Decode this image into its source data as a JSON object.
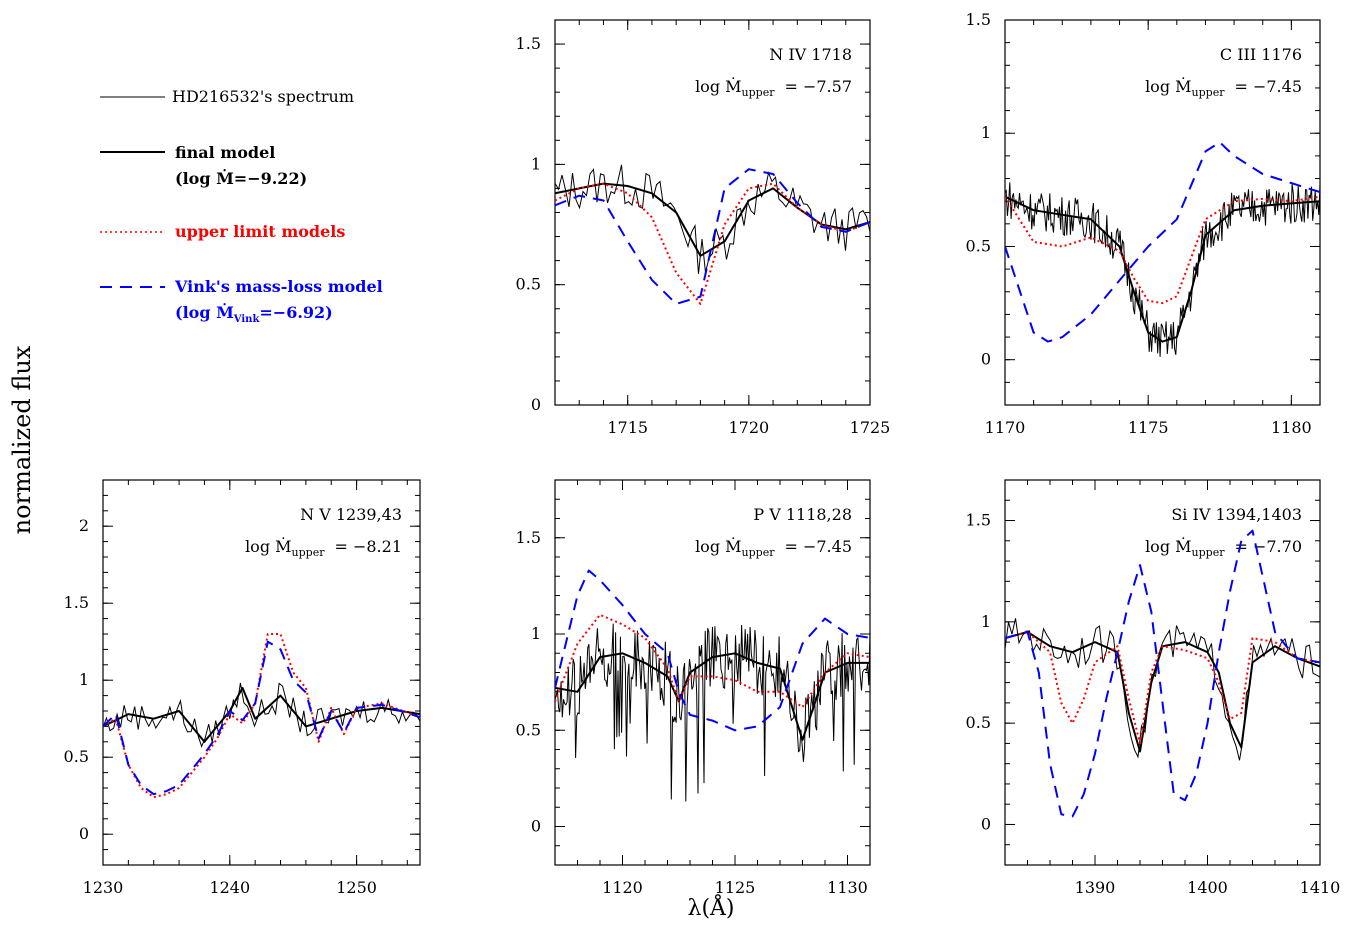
{
  "figure": {
    "ylabel": "normalized flux",
    "xlabel": "λ(Å)"
  },
  "legend": {
    "spectrum_label": "HD216532's spectrum",
    "final_label": "final model",
    "final_sub": "(log Ṁ=−9.22)",
    "upper_label": "upper limit models",
    "vink_label": "Vink's mass-loss model",
    "vink_sub_pre": "(log Ṁ",
    "vink_sub_subscript": "Vink",
    "vink_sub_post": "=−6.92)"
  },
  "colors": {
    "spectrum": "#000000",
    "final": "#000000",
    "upper": "#ff0000",
    "vink": "#0000ff"
  },
  "chart_data": [
    {
      "type": "line",
      "title": "N IV 1718",
      "annotation_prefix": "log Ṁ",
      "annotation_subscript": "upper",
      "annotation_value": "=  −7.57",
      "xlim": [
        1712,
        1725
      ],
      "ylim": [
        0,
        1.6
      ],
      "xticks": [
        1715,
        1720,
        1725
      ],
      "xtick_labels": [
        "1715",
        "1720",
        "1725"
      ],
      "yticks": [
        0,
        0.5,
        1,
        1.5
      ],
      "ytick_labels": [
        "0",
        "0.5",
        "1",
        "1.5"
      ],
      "series": [
        {
          "name": "final model",
          "x": [
            1712,
            1713,
            1714,
            1715,
            1716,
            1717,
            1718,
            1719,
            1720,
            1721,
            1722,
            1723,
            1724,
            1725
          ],
          "y": [
            0.88,
            0.9,
            0.92,
            0.91,
            0.88,
            0.8,
            0.62,
            0.68,
            0.85,
            0.9,
            0.82,
            0.75,
            0.73,
            0.76
          ]
        },
        {
          "name": "upper limit models",
          "x": [
            1712,
            1713,
            1714,
            1715,
            1716,
            1717,
            1718,
            1719,
            1720,
            1721,
            1722,
            1723,
            1724,
            1725
          ],
          "y": [
            0.85,
            0.9,
            0.92,
            0.88,
            0.78,
            0.55,
            0.42,
            0.75,
            0.9,
            0.92,
            0.82,
            0.75,
            0.72,
            0.76
          ]
        },
        {
          "name": "Vink's mass-loss model",
          "x": [
            1712,
            1713,
            1714,
            1715,
            1716,
            1717,
            1718,
            1719,
            1720,
            1721,
            1722,
            1723,
            1724,
            1725
          ],
          "y": [
            0.83,
            0.87,
            0.85,
            0.68,
            0.52,
            0.42,
            0.45,
            0.9,
            0.98,
            0.96,
            0.84,
            0.74,
            0.72,
            0.76
          ]
        }
      ]
    },
    {
      "type": "line",
      "title": "C III 1176",
      "annotation_prefix": "log Ṁ",
      "annotation_subscript": "upper",
      "annotation_value": "=  −7.45",
      "xlim": [
        1170,
        1181
      ],
      "ylim": [
        -0.2,
        1.5
      ],
      "xticks": [
        1170,
        1175,
        1180
      ],
      "xtick_labels": [
        "1170",
        "1175",
        "1180"
      ],
      "yticks": [
        0,
        0.5,
        1,
        1.5
      ],
      "ytick_labels": [
        "0",
        "0.5",
        "1",
        "1.5"
      ],
      "series": [
        {
          "name": "final model",
          "x": [
            1170,
            1171,
            1172,
            1173,
            1174,
            1174.5,
            1175,
            1175.5,
            1176,
            1176.5,
            1177,
            1178,
            1179,
            1180,
            1181
          ],
          "y": [
            0.72,
            0.66,
            0.64,
            0.62,
            0.5,
            0.3,
            0.12,
            0.08,
            0.1,
            0.3,
            0.55,
            0.66,
            0.68,
            0.69,
            0.7
          ]
        },
        {
          "name": "upper limit models",
          "x": [
            1170,
            1171,
            1172,
            1173,
            1174,
            1174.5,
            1175,
            1175.5,
            1176,
            1176.5,
            1177,
            1178,
            1179,
            1180,
            1181
          ],
          "y": [
            0.72,
            0.52,
            0.5,
            0.54,
            0.48,
            0.36,
            0.26,
            0.25,
            0.28,
            0.45,
            0.62,
            0.7,
            0.71,
            0.7,
            0.72
          ]
        },
        {
          "name": "Vink's mass-loss model",
          "x": [
            1170,
            1171,
            1171.5,
            1172,
            1173,
            1174,
            1175,
            1176,
            1177,
            1177.5,
            1178,
            1179,
            1180,
            1181
          ],
          "y": [
            0.5,
            0.12,
            0.08,
            0.1,
            0.2,
            0.35,
            0.5,
            0.62,
            0.92,
            0.96,
            0.9,
            0.82,
            0.78,
            0.74
          ]
        }
      ]
    },
    {
      "type": "line",
      "title": "N V 1239,43",
      "annotation_prefix": "log Ṁ",
      "annotation_subscript": "upper",
      "annotation_value": "=  −8.21",
      "xlim": [
        1230,
        1255
      ],
      "ylim": [
        -0.2,
        2.3
      ],
      "xticks": [
        1230,
        1240,
        1250
      ],
      "xtick_labels": [
        "1230",
        "1240",
        "1250"
      ],
      "yticks": [
        0,
        0.5,
        1,
        1.5,
        2
      ],
      "ytick_labels": [
        "0",
        "0.5",
        "1",
        "1.5",
        "2"
      ],
      "series": [
        {
          "name": "final model",
          "x": [
            1230,
            1232,
            1234,
            1236,
            1238,
            1240,
            1241,
            1242,
            1244,
            1246,
            1248,
            1250,
            1252,
            1255
          ],
          "y": [
            0.7,
            0.78,
            0.75,
            0.8,
            0.6,
            0.8,
            0.95,
            0.75,
            0.9,
            0.7,
            0.75,
            0.8,
            0.82,
            0.78
          ]
        },
        {
          "name": "upper limit models",
          "x": [
            1230,
            1231,
            1232,
            1233,
            1234,
            1235,
            1236,
            1237,
            1238,
            1239,
            1240,
            1241,
            1242,
            1243,
            1244,
            1245,
            1246,
            1247,
            1248,
            1249,
            1250,
            1252,
            1255
          ],
          "y": [
            0.7,
            0.75,
            0.45,
            0.3,
            0.24,
            0.26,
            0.3,
            0.4,
            0.5,
            0.62,
            0.78,
            0.72,
            0.85,
            1.3,
            1.3,
            1.05,
            0.95,
            0.6,
            0.82,
            0.65,
            0.82,
            0.85,
            0.76
          ]
        },
        {
          "name": "Vink's mass-loss model",
          "x": [
            1230,
            1231,
            1232,
            1233,
            1234,
            1235,
            1236,
            1237,
            1238,
            1239,
            1240,
            1241,
            1242,
            1243,
            1244,
            1245,
            1246,
            1247,
            1248,
            1249,
            1250,
            1252,
            1255
          ],
          "y": [
            0.7,
            0.78,
            0.45,
            0.32,
            0.26,
            0.28,
            0.32,
            0.42,
            0.52,
            0.64,
            0.8,
            0.74,
            0.85,
            1.25,
            1.2,
            1.0,
            0.92,
            0.62,
            0.8,
            0.66,
            0.82,
            0.84,
            0.76
          ]
        }
      ]
    },
    {
      "type": "line",
      "title": "P V 1118,28",
      "annotation_prefix": "log Ṁ",
      "annotation_subscript": "upper",
      "annotation_value": "=  −7.45",
      "xlim": [
        1117,
        1131
      ],
      "ylim": [
        -0.2,
        1.8
      ],
      "xticks": [
        1120,
        1125,
        1130
      ],
      "xtick_labels": [
        "1120",
        "1125",
        "1130"
      ],
      "yticks": [
        0,
        0.5,
        1,
        1.5
      ],
      "ytick_labels": [
        "0",
        "0.5",
        "1",
        "1.5"
      ],
      "series": [
        {
          "name": "final model",
          "x": [
            1117,
            1118,
            1119,
            1120,
            1121,
            1122,
            1122.5,
            1123,
            1124,
            1125,
            1126,
            1127,
            1128,
            1129,
            1130,
            1131
          ],
          "y": [
            0.72,
            0.7,
            0.88,
            0.9,
            0.85,
            0.78,
            0.65,
            0.8,
            0.88,
            0.9,
            0.85,
            0.82,
            0.45,
            0.8,
            0.85,
            0.85
          ]
        },
        {
          "name": "upper limit models",
          "x": [
            1117,
            1118,
            1119,
            1120,
            1121,
            1122,
            1122.5,
            1123,
            1124,
            1125,
            1126,
            1127,
            1128,
            1129,
            1130,
            1131
          ],
          "y": [
            0.65,
            0.95,
            1.1,
            1.05,
            0.98,
            0.82,
            0.65,
            0.78,
            0.78,
            0.76,
            0.7,
            0.7,
            0.62,
            0.8,
            0.9,
            0.88
          ]
        },
        {
          "name": "Vink's mass-loss model",
          "x": [
            1117,
            1118,
            1118.5,
            1119,
            1120,
            1121,
            1122,
            1122.5,
            1123,
            1124,
            1125,
            1126,
            1127,
            1128,
            1129,
            1130,
            1131
          ],
          "y": [
            0.72,
            1.2,
            1.33,
            1.28,
            1.15,
            1.0,
            0.9,
            0.7,
            0.58,
            0.55,
            0.5,
            0.52,
            0.62,
            0.95,
            1.08,
            1.0,
            0.98
          ]
        }
      ]
    },
    {
      "type": "line",
      "title": "Si IV 1394,1403",
      "annotation_prefix": "log Ṁ",
      "annotation_subscript": "upper",
      "annotation_value": "=  −7.70",
      "xlim": [
        1382,
        1410
      ],
      "ylim": [
        -0.2,
        1.7
      ],
      "xticks": [
        1390,
        1400,
        1410
      ],
      "xtick_labels": [
        "1390",
        "1400",
        "1410"
      ],
      "yticks": [
        0,
        0.5,
        1,
        1.5
      ],
      "ytick_labels": [
        "0",
        "0.5",
        "1",
        "1.5"
      ],
      "series": [
        {
          "name": "final model",
          "x": [
            1382,
            1384,
            1386,
            1388,
            1390,
            1392,
            1393,
            1394,
            1395,
            1396,
            1398,
            1400,
            1401,
            1402,
            1403,
            1404,
            1406,
            1408,
            1410
          ],
          "y": [
            0.92,
            0.95,
            0.88,
            0.85,
            0.9,
            0.85,
            0.55,
            0.36,
            0.7,
            0.88,
            0.9,
            0.85,
            0.75,
            0.5,
            0.38,
            0.8,
            0.88,
            0.82,
            0.78
          ]
        },
        {
          "name": "upper limit models",
          "x": [
            1382,
            1384,
            1386,
            1387,
            1388,
            1389,
            1390,
            1392,
            1393,
            1394,
            1395,
            1396,
            1398,
            1400,
            1401,
            1402,
            1403,
            1404,
            1406,
            1408,
            1410
          ],
          "y": [
            0.92,
            0.95,
            0.85,
            0.6,
            0.5,
            0.62,
            0.8,
            0.88,
            0.62,
            0.4,
            0.75,
            0.88,
            0.86,
            0.82,
            0.7,
            0.52,
            0.55,
            0.92,
            0.9,
            0.82,
            0.8
          ]
        },
        {
          "name": "Vink's mass-loss model",
          "x": [
            1382,
            1384,
            1385,
            1386,
            1387,
            1388,
            1389,
            1390,
            1391,
            1392,
            1393,
            1394,
            1395,
            1396,
            1397,
            1398,
            1399,
            1400,
            1401,
            1402,
            1403,
            1404,
            1405,
            1406,
            1407,
            1408,
            1410
          ],
          "y": [
            0.92,
            0.95,
            0.75,
            0.3,
            0.05,
            0.04,
            0.15,
            0.35,
            0.62,
            0.85,
            1.1,
            1.28,
            1.05,
            0.6,
            0.15,
            0.12,
            0.25,
            0.5,
            0.85,
            1.15,
            1.4,
            1.45,
            1.2,
            0.95,
            0.88,
            0.82,
            0.8
          ]
        }
      ]
    }
  ]
}
